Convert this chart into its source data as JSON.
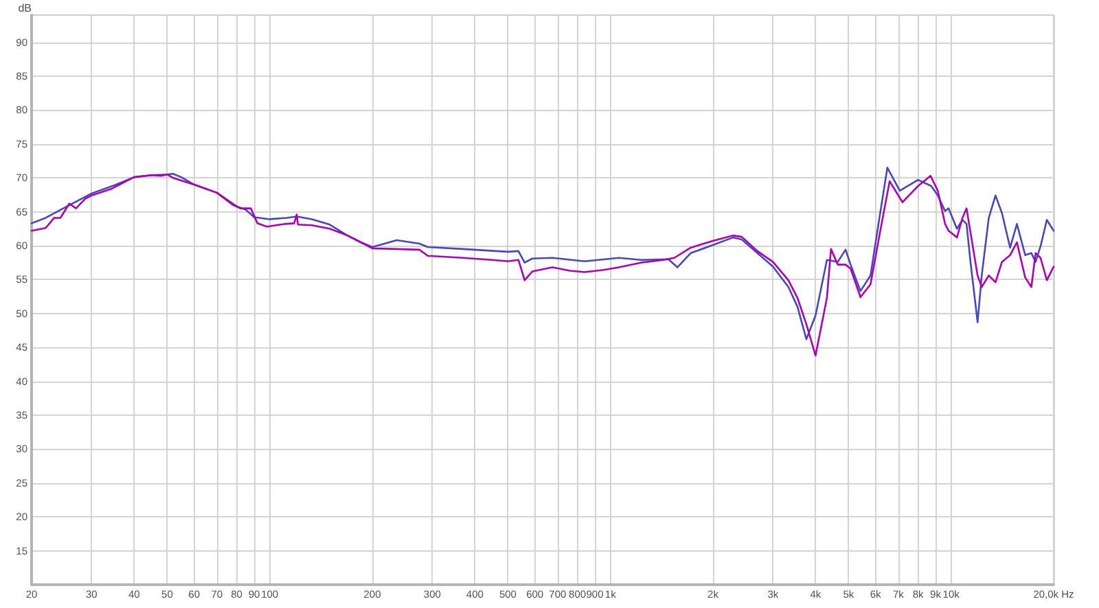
{
  "chart_data": {
    "type": "line",
    "ylabel": "dB",
    "log": "x",
    "xlim": [
      20,
      20000
    ],
    "ylim": [
      10,
      94
    ],
    "xticks": [
      20,
      30,
      40,
      50,
      60,
      70,
      80,
      90,
      100,
      200,
      300,
      400,
      500,
      600,
      700,
      800,
      900,
      {
        "value": 1000,
        "label": "1k"
      },
      {
        "value": 2000,
        "label": "2k"
      },
      {
        "value": 3000,
        "label": "3k"
      },
      {
        "value": 4000,
        "label": "4k"
      },
      {
        "value": 5000,
        "label": "5k"
      },
      {
        "value": 6000,
        "label": "6k"
      },
      {
        "value": 7000,
        "label": "7k"
      },
      {
        "value": 8000,
        "label": "8k"
      },
      {
        "value": 9000,
        "label": "9k"
      },
      {
        "value": 10000,
        "label": "10k"
      },
      {
        "value": 20000,
        "label": "20,0k Hz"
      }
    ],
    "yticks": [
      15,
      20,
      25,
      30,
      35,
      40,
      45,
      50,
      55,
      60,
      65,
      70,
      75,
      80,
      85,
      90
    ],
    "grid": true,
    "marker": "none",
    "line_style": "solid",
    "series": [
      {
        "color": "#4646c0",
        "x": [
          20,
          22,
          25,
          30,
          35,
          40,
          45,
          50,
          52,
          55,
          60,
          70,
          80,
          85,
          90,
          100,
          112,
          120,
          133,
          150,
          169,
          185,
          200,
          236,
          275,
          291,
          369,
          500,
          537,
          560,
          590,
          676,
          840,
          1060,
          1230,
          1480,
          1572,
          1720,
          2000,
          2290,
          2430,
          2700,
          3000,
          3330,
          3540,
          3760,
          4000,
          4320,
          4650,
          4900,
          5070,
          5420,
          5800,
          6160,
          6500,
          7070,
          8000,
          8740,
          9140,
          9600,
          9830,
          10400,
          10800,
          11100,
          11400,
          11960,
          12300,
          12900,
          13500,
          14100,
          14900,
          15600,
          16500,
          17200,
          17700,
          18300,
          19100,
          20000
        ],
        "values": [
          63.3,
          64.1,
          65.6,
          67.7,
          68.9,
          70.1,
          70.4,
          70.5,
          70.6,
          70.1,
          69.0,
          67.8,
          65.8,
          65.3,
          64.2,
          63.9,
          64.1,
          64.3,
          63.9,
          63.1,
          61.5,
          60.5,
          59.8,
          60.8,
          60.3,
          59.8,
          59.5,
          59.1,
          59.2,
          57.5,
          58.1,
          58.2,
          57.7,
          58.2,
          57.9,
          58.0,
          56.8,
          58.9,
          60.1,
          61.2,
          60.9,
          58.9,
          56.9,
          53.9,
          51.0,
          46.2,
          49.7,
          57.9,
          57.6,
          59.4,
          57.2,
          53.3,
          55.6,
          64.1,
          71.5,
          68.1,
          69.7,
          68.8,
          67.4,
          65.1,
          65.5,
          62.5,
          63.8,
          63.2,
          57.6,
          48.7,
          55.6,
          64.1,
          67.4,
          64.8,
          59.7,
          63.2,
          58.6,
          58.9,
          57.6,
          59.9,
          63.8,
          62.2
        ]
      },
      {
        "color": "#b000b4",
        "x": [
          20,
          22,
          23.3,
          24.3,
          25.8,
          27,
          28.7,
          30,
          34.4,
          40,
          45,
          48,
          50,
          52,
          60,
          70,
          78,
          82,
          88,
          92,
          98,
          111,
          118,
          120,
          121,
          133,
          150,
          169,
          185,
          200,
          275,
          291,
          369,
          450,
          500,
          537,
          560,
          590,
          676,
          760,
          840,
          950,
          1060,
          1230,
          1430,
          1540,
          1720,
          2000,
          2290,
          2430,
          2700,
          3000,
          3330,
          3540,
          3760,
          4000,
          4320,
          4440,
          4650,
          4900,
          5070,
          5420,
          5800,
          6160,
          6600,
          7200,
          8000,
          8700,
          9140,
          9600,
          9830,
          10400,
          10800,
          11100,
          11960,
          12300,
          12900,
          13500,
          14100,
          14900,
          15600,
          16500,
          17200,
          17700,
          18300,
          19100,
          20000
        ],
        "values": [
          62.2,
          62.6,
          64.1,
          64.1,
          66.2,
          65.5,
          66.9,
          67.4,
          68.4,
          70.1,
          70.4,
          70.3,
          70.5,
          70.0,
          69.0,
          67.8,
          66.0,
          65.5,
          65.5,
          63.3,
          62.8,
          63.2,
          63.3,
          64.6,
          63.1,
          63.0,
          62.5,
          61.5,
          60.5,
          59.6,
          59.4,
          58.5,
          58.2,
          57.9,
          57.7,
          57.9,
          54.9,
          56.2,
          56.8,
          56.3,
          56.1,
          56.4,
          56.8,
          57.5,
          57.9,
          58.2,
          59.7,
          60.7,
          61.5,
          61.3,
          59.2,
          57.6,
          54.9,
          52.3,
          48.4,
          43.8,
          52.3,
          59.5,
          57.2,
          57.2,
          56.6,
          52.4,
          54.3,
          61.5,
          69.5,
          66.4,
          68.8,
          70.3,
          68.1,
          63.2,
          62.2,
          61.2,
          64.1,
          65.5,
          55.6,
          53.9,
          55.6,
          54.6,
          57.6,
          58.6,
          60.5,
          55.3,
          53.9,
          58.9,
          58.2,
          54.9,
          56.9
        ]
      }
    ]
  }
}
